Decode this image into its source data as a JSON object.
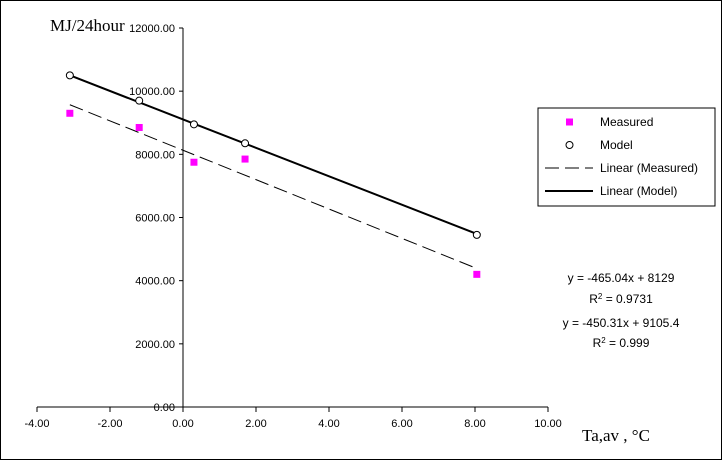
{
  "chart_data": {
    "type": "scatter",
    "ylabel": "MJ/24hour",
    "xlabel": "Ta,av  , °C",
    "xlim": [
      -4,
      10
    ],
    "ylim": [
      0,
      12000
    ],
    "x_ticks": [
      -4,
      -2,
      0,
      2,
      4,
      6,
      8,
      10
    ],
    "y_ticks": [
      0,
      2000,
      4000,
      6000,
      8000,
      10000,
      12000
    ],
    "x_tick_labels": [
      "-4.00",
      "-2.00",
      "0.00",
      "2.00",
      "4.00",
      "6.00",
      "8.00",
      "10.00"
    ],
    "y_tick_labels": [
      "0.00",
      "2000.00",
      "4000.00",
      "6000.00",
      "8000.00",
      "10000.00",
      "12000.00"
    ],
    "series": [
      {
        "name": "Measured",
        "marker": "square",
        "color": "#ff00ff",
        "x": [
          -3.1,
          -1.2,
          0.3,
          1.7,
          8.05
        ],
        "y": [
          9300,
          8850,
          7750,
          7850,
          4200
        ]
      },
      {
        "name": "Model",
        "marker": "open-circle",
        "color": "#000000",
        "x": [
          -3.1,
          -1.2,
          0.3,
          1.7,
          8.05
        ],
        "y": [
          10500,
          9700,
          8950,
          8350,
          5450
        ]
      }
    ],
    "trendlines": [
      {
        "name": "Linear (Measured)",
        "style": "dashed",
        "color": "#000000",
        "slope": -465.04,
        "intercept": 8129,
        "x_range": [
          -3.1,
          8.05
        ]
      },
      {
        "name": "Linear (Model)",
        "style": "solid",
        "color": "#000000",
        "slope": -450.31,
        "intercept": 9105.4,
        "x_range": [
          -3.1,
          8.05
        ]
      }
    ],
    "legend": {
      "placement": "right",
      "entries": [
        "Measured",
        "Model",
        "Linear (Measured)",
        "Linear (Model)"
      ]
    },
    "annotations": [
      {
        "eq": "y = -465.04x + 8129",
        "r2": "0.9731"
      },
      {
        "eq": "y = -450.31x + 9105.4",
        "r2": "0.999"
      }
    ],
    "r2_prefix": "R",
    "r2_sup": "2",
    "r2_suffix": " = "
  }
}
